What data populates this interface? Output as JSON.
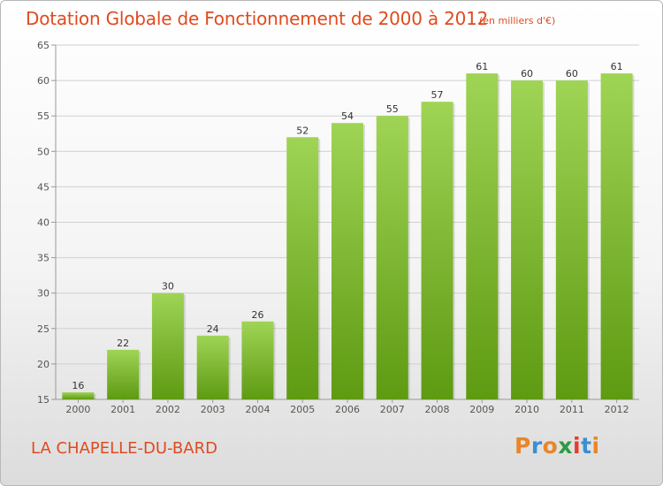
{
  "header": {
    "title": "Dotation Globale de Fonctionnement de 2000 à 2012",
    "unit_note": "(en milliers d'€)"
  },
  "footer": {
    "commune": "LA CHAPELLE-DU-BARD",
    "brand": "Proxiti",
    "brand_letter_colors": [
      "#e8862a",
      "#3a8fd1",
      "#e8862a",
      "#2e9a42",
      "#e53c2f",
      "#3a8fd1",
      "#e8862a"
    ]
  },
  "colors": {
    "title": "#e04a1f",
    "bar_light": "#9fd455",
    "bar_dark": "#5e9a12",
    "grid": "#cfcfcf"
  },
  "chart_data": {
    "type": "bar",
    "title": "Dotation Globale de Fonctionnement de 2000 à 2012",
    "subtitle": "(en milliers d'€)",
    "categories": [
      "2000",
      "2001",
      "2002",
      "2003",
      "2004",
      "2005",
      "2006",
      "2007",
      "2008",
      "2009",
      "2010",
      "2011",
      "2012"
    ],
    "values": [
      16,
      22,
      30,
      24,
      26,
      52,
      54,
      55,
      57,
      61,
      60,
      60,
      61
    ],
    "ylim": [
      15,
      65
    ],
    "yticks": [
      15,
      20,
      25,
      30,
      35,
      40,
      45,
      50,
      55,
      60,
      65
    ],
    "grid": true,
    "xlabel": "",
    "ylabel": ""
  }
}
